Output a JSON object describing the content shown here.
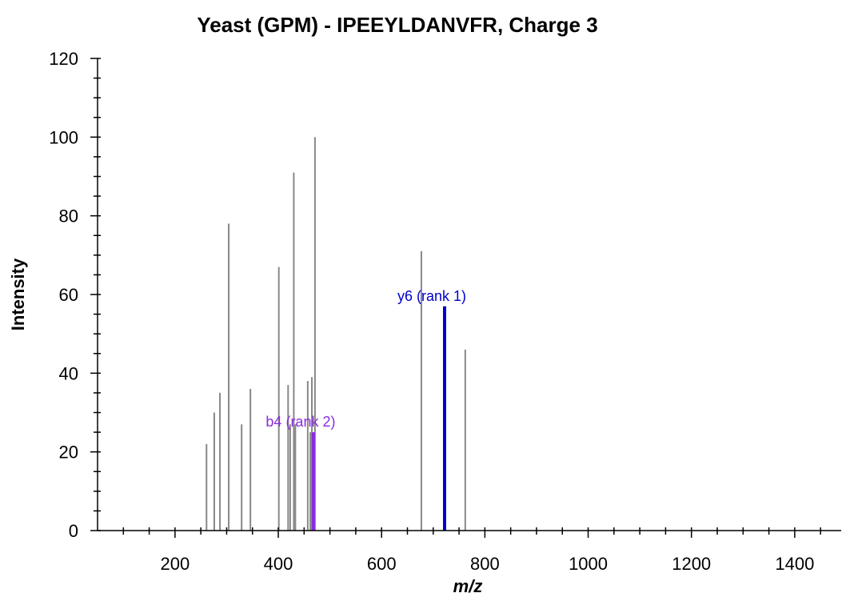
{
  "chart_data": {
    "type": "bar",
    "title": "Yeast (GPM) - IPEEYLDANVFR, Charge 3",
    "xlabel": "m/z",
    "ylabel": "Intensity",
    "xlim": [
      50,
      1490
    ],
    "ylim": [
      0,
      120
    ],
    "xticks": [
      200,
      400,
      600,
      800,
      1000,
      1200,
      1400
    ],
    "yticks": [
      0,
      20,
      40,
      60,
      80,
      100,
      120
    ],
    "grid": false,
    "colors": {
      "peak": "#888888",
      "y_ion": "#0000cc",
      "b_ion": "#8a2be2"
    },
    "series": [
      {
        "values": [
          {
            "x": 261,
            "y": 22
          },
          {
            "x": 276,
            "y": 30
          },
          {
            "x": 287,
            "y": 35
          },
          {
            "x": 304,
            "y": 78
          },
          {
            "x": 329,
            "y": 27
          },
          {
            "x": 346,
            "y": 36
          },
          {
            "x": 401,
            "y": 67
          },
          {
            "x": 419,
            "y": 37
          },
          {
            "x": 423,
            "y": 27
          },
          {
            "x": 430,
            "y": 91
          },
          {
            "x": 433,
            "y": 27
          },
          {
            "x": 457,
            "y": 38
          },
          {
            "x": 462,
            "y": 25
          },
          {
            "x": 465,
            "y": 39
          },
          {
            "x": 471,
            "y": 100
          },
          {
            "x": 677,
            "y": 71
          },
          {
            "x": 762,
            "y": 46
          }
        ]
      }
    ],
    "annotations": [
      {
        "label": "y6 (rank 1)",
        "x": 722,
        "y": 57,
        "color": "#0000cc"
      },
      {
        "label": "b4 (rank 2)",
        "x": 468,
        "y": 25,
        "color": "#8a2be2"
      }
    ]
  }
}
